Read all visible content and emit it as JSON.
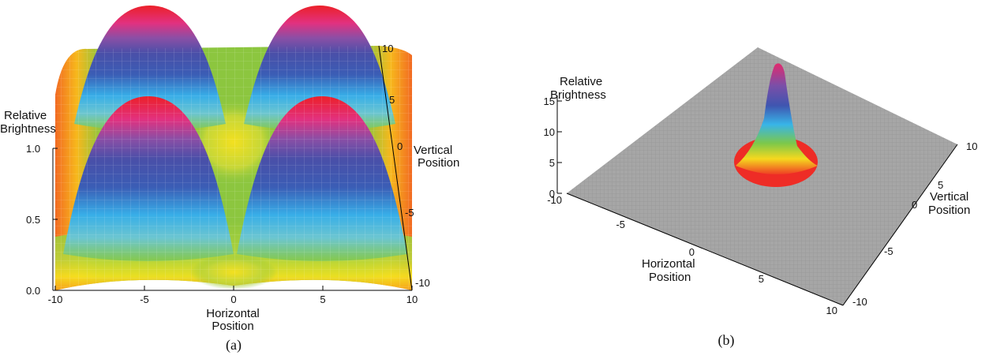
{
  "chart_data": [
    {
      "type": "surface",
      "panel_label": "(a)",
      "zlabel": [
        "Relative",
        "Brightness"
      ],
      "xlabel": [
        "Horizontal",
        "Position"
      ],
      "ylabel": [
        "Vertical",
        "Position"
      ],
      "x_ticks": [
        "-10",
        "-5",
        "0",
        "5",
        "10"
      ],
      "y_ticks": [
        "10",
        "5",
        "0",
        "-5",
        "-10"
      ],
      "z_ticks": [
        "1.0",
        "0.5",
        "0.0"
      ],
      "xlim": [
        -10,
        10
      ],
      "ylim": [
        -10,
        10
      ],
      "zlim": [
        0,
        1
      ],
      "surface": {
        "description_peaks_at": [
          [
            -5,
            5
          ],
          [
            5,
            5
          ],
          [
            -5,
            -5
          ],
          [
            5,
            -5
          ]
        ],
        "peak_value": 1.0
      },
      "colormap": [
        "#e8202a",
        "#e33088",
        "#7a4fa8",
        "#3f4fa8",
        "#3ac4ee",
        "#7cc84a",
        "#f5e81e",
        "#f7a21b",
        "#ef4523"
      ]
    },
    {
      "type": "surface",
      "panel_label": "(b)",
      "zlabel": [
        "Relative",
        "Brightness"
      ],
      "xlabel": [
        "Horizontal",
        "Position"
      ],
      "ylabel": [
        "Vertical",
        "Position"
      ],
      "x_ticks": [
        "-10",
        "-5",
        "0",
        "5",
        "10"
      ],
      "y_ticks": [
        "10",
        "5",
        "0",
        "-5",
        "-10"
      ],
      "z_ticks": [
        "15",
        "10",
        "5",
        "0"
      ],
      "xlim": [
        -10,
        10
      ],
      "ylim": [
        -10,
        10
      ],
      "zlim": [
        0,
        15
      ],
      "surface": {
        "description_peak_at": [
          0,
          0
        ],
        "peak_value": 14
      },
      "plane_color": "#a6a6a6",
      "colormap": [
        "#e33088",
        "#3f4fa8",
        "#3ac4ee",
        "#7cc84a",
        "#f5e81e",
        "#ef4523"
      ]
    }
  ]
}
